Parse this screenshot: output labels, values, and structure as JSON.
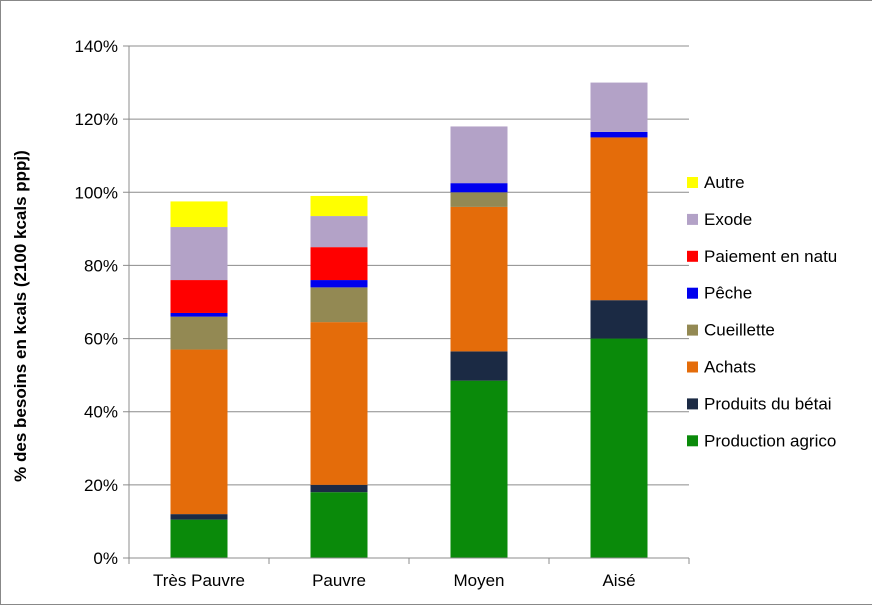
{
  "chart_data": {
    "type": "bar",
    "stacked": true,
    "title": "",
    "xlabel": "",
    "ylabel": "% des besoins en kcals (2100 kcals pppj)",
    "categories": [
      "Très Pauvre",
      "Pauvre",
      "Moyen",
      "Aisé"
    ],
    "ylim": [
      0,
      140
    ],
    "yticks": [
      0,
      20,
      40,
      60,
      80,
      100,
      120,
      140
    ],
    "ytick_labels": [
      "0%",
      "20%",
      "40%",
      "60%",
      "80%",
      "100%",
      "120%",
      "140%"
    ],
    "grid": true,
    "legend_position": "right",
    "series": [
      {
        "name": "Production agricole",
        "legend_label": "Production agrico",
        "color": "#0a8a0a",
        "values": [
          10.5,
          18,
          48.5,
          60
        ]
      },
      {
        "name": "Produits du bétail",
        "legend_label": "Produits du bétai",
        "color": "#1b2a44",
        "values": [
          1.5,
          2,
          8,
          10.5
        ]
      },
      {
        "name": "Achats",
        "legend_label": "Achats",
        "color": "#e46c0a",
        "values": [
          45,
          44.5,
          39.5,
          44.5
        ]
      },
      {
        "name": "Cueillette",
        "legend_label": "Cueillette",
        "color": "#938953",
        "values": [
          9,
          9.5,
          4,
          0
        ]
      },
      {
        "name": "Pêche",
        "legend_label": "Pêche",
        "color": "#0000ee",
        "values": [
          1,
          2,
          2.5,
          1.5
        ]
      },
      {
        "name": "Paiement en nature",
        "legend_label": "Paiement en natu",
        "color": "#ff0000",
        "values": [
          9,
          9,
          0,
          0
        ]
      },
      {
        "name": "Exode",
        "legend_label": "Exode",
        "color": "#b3a2c7",
        "values": [
          14.5,
          8.5,
          15.5,
          13.5
        ]
      },
      {
        "name": "Autre",
        "legend_label": "Autre",
        "color": "#ffff00",
        "values": [
          7,
          5.5,
          0,
          0
        ]
      }
    ]
  }
}
